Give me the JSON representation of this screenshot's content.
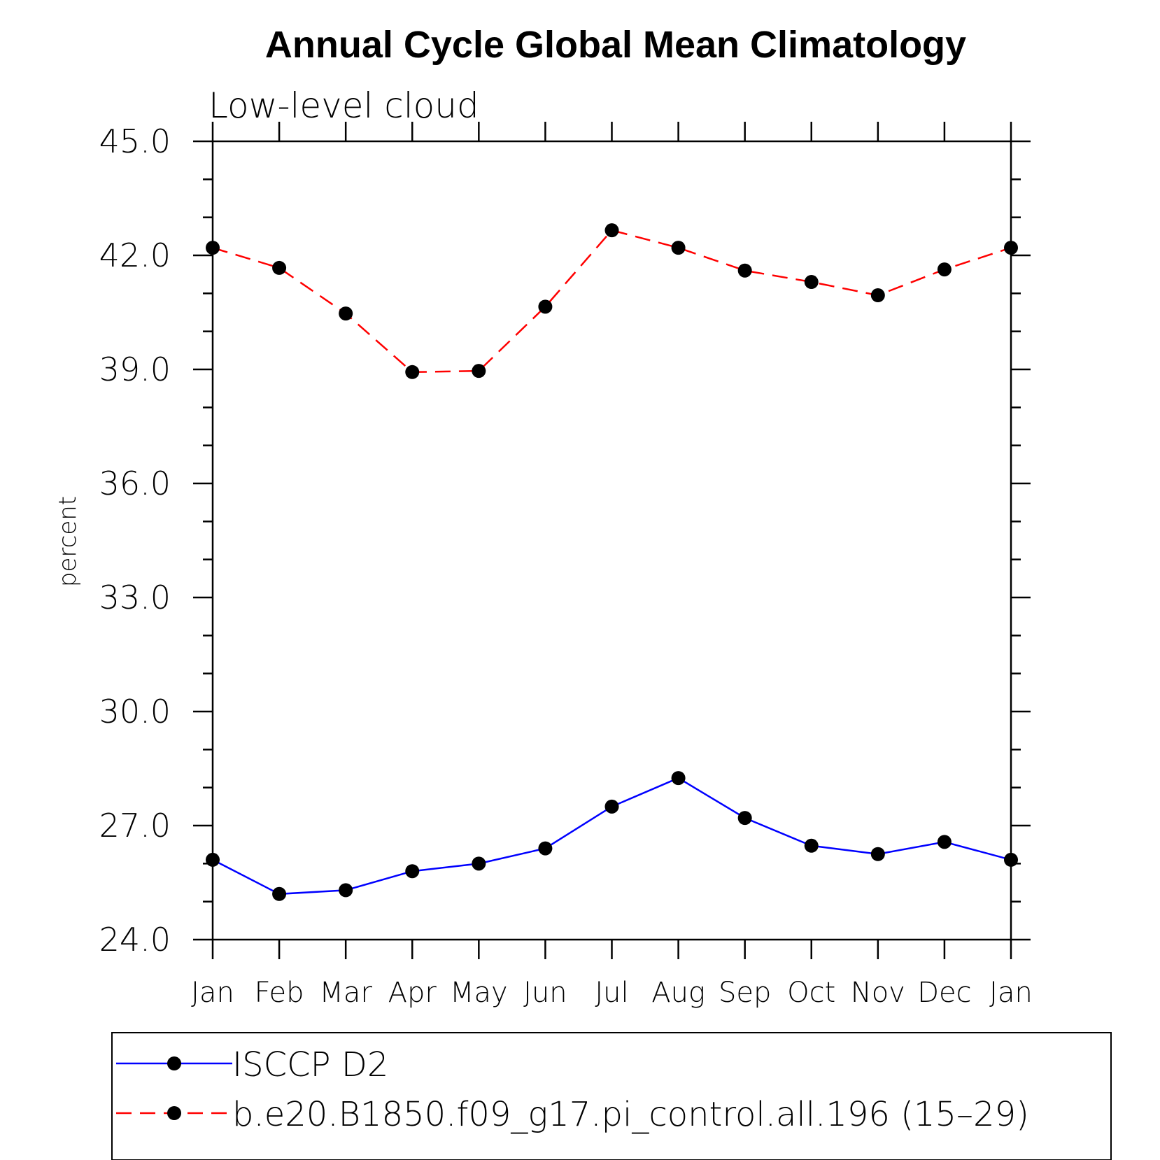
{
  "chart_data": {
    "type": "line",
    "title": "Annual Cycle Global Mean Climatology",
    "subtitle": "Low-level cloud",
    "ylabel": "percent",
    "xlabel": "",
    "categories": [
      "Jan",
      "Feb",
      "Mar",
      "Apr",
      "May",
      "Jun",
      "Jul",
      "Aug",
      "Sep",
      "Oct",
      "Nov",
      "Dec",
      "Jan"
    ],
    "ylim": [
      24.0,
      45.0
    ],
    "yticks": [
      "45.0",
      "42.0",
      "39.0",
      "36.0",
      "33.0",
      "30.0",
      "27.0",
      "24.0"
    ],
    "series": [
      {
        "name": "ISCCP D2",
        "color": "#0000ff",
        "dash": "solid",
        "marker": "filled-circle",
        "values": [
          26.1,
          25.2,
          25.3,
          25.8,
          26.0,
          26.4,
          27.5,
          28.25,
          27.2,
          26.47,
          26.25,
          26.57,
          26.1
        ]
      },
      {
        "name": "b.e20.B1850.f09_g17.pi_control.all.196 (15–29)",
        "color": "#ff0000",
        "dash": "dashed",
        "marker": "filled-circle",
        "values": [
          42.2,
          41.67,
          40.47,
          38.93,
          38.96,
          40.65,
          42.66,
          42.2,
          41.6,
          41.3,
          40.95,
          41.63,
          42.2
        ]
      }
    ],
    "grid": false,
    "legend_position": "bottom"
  }
}
